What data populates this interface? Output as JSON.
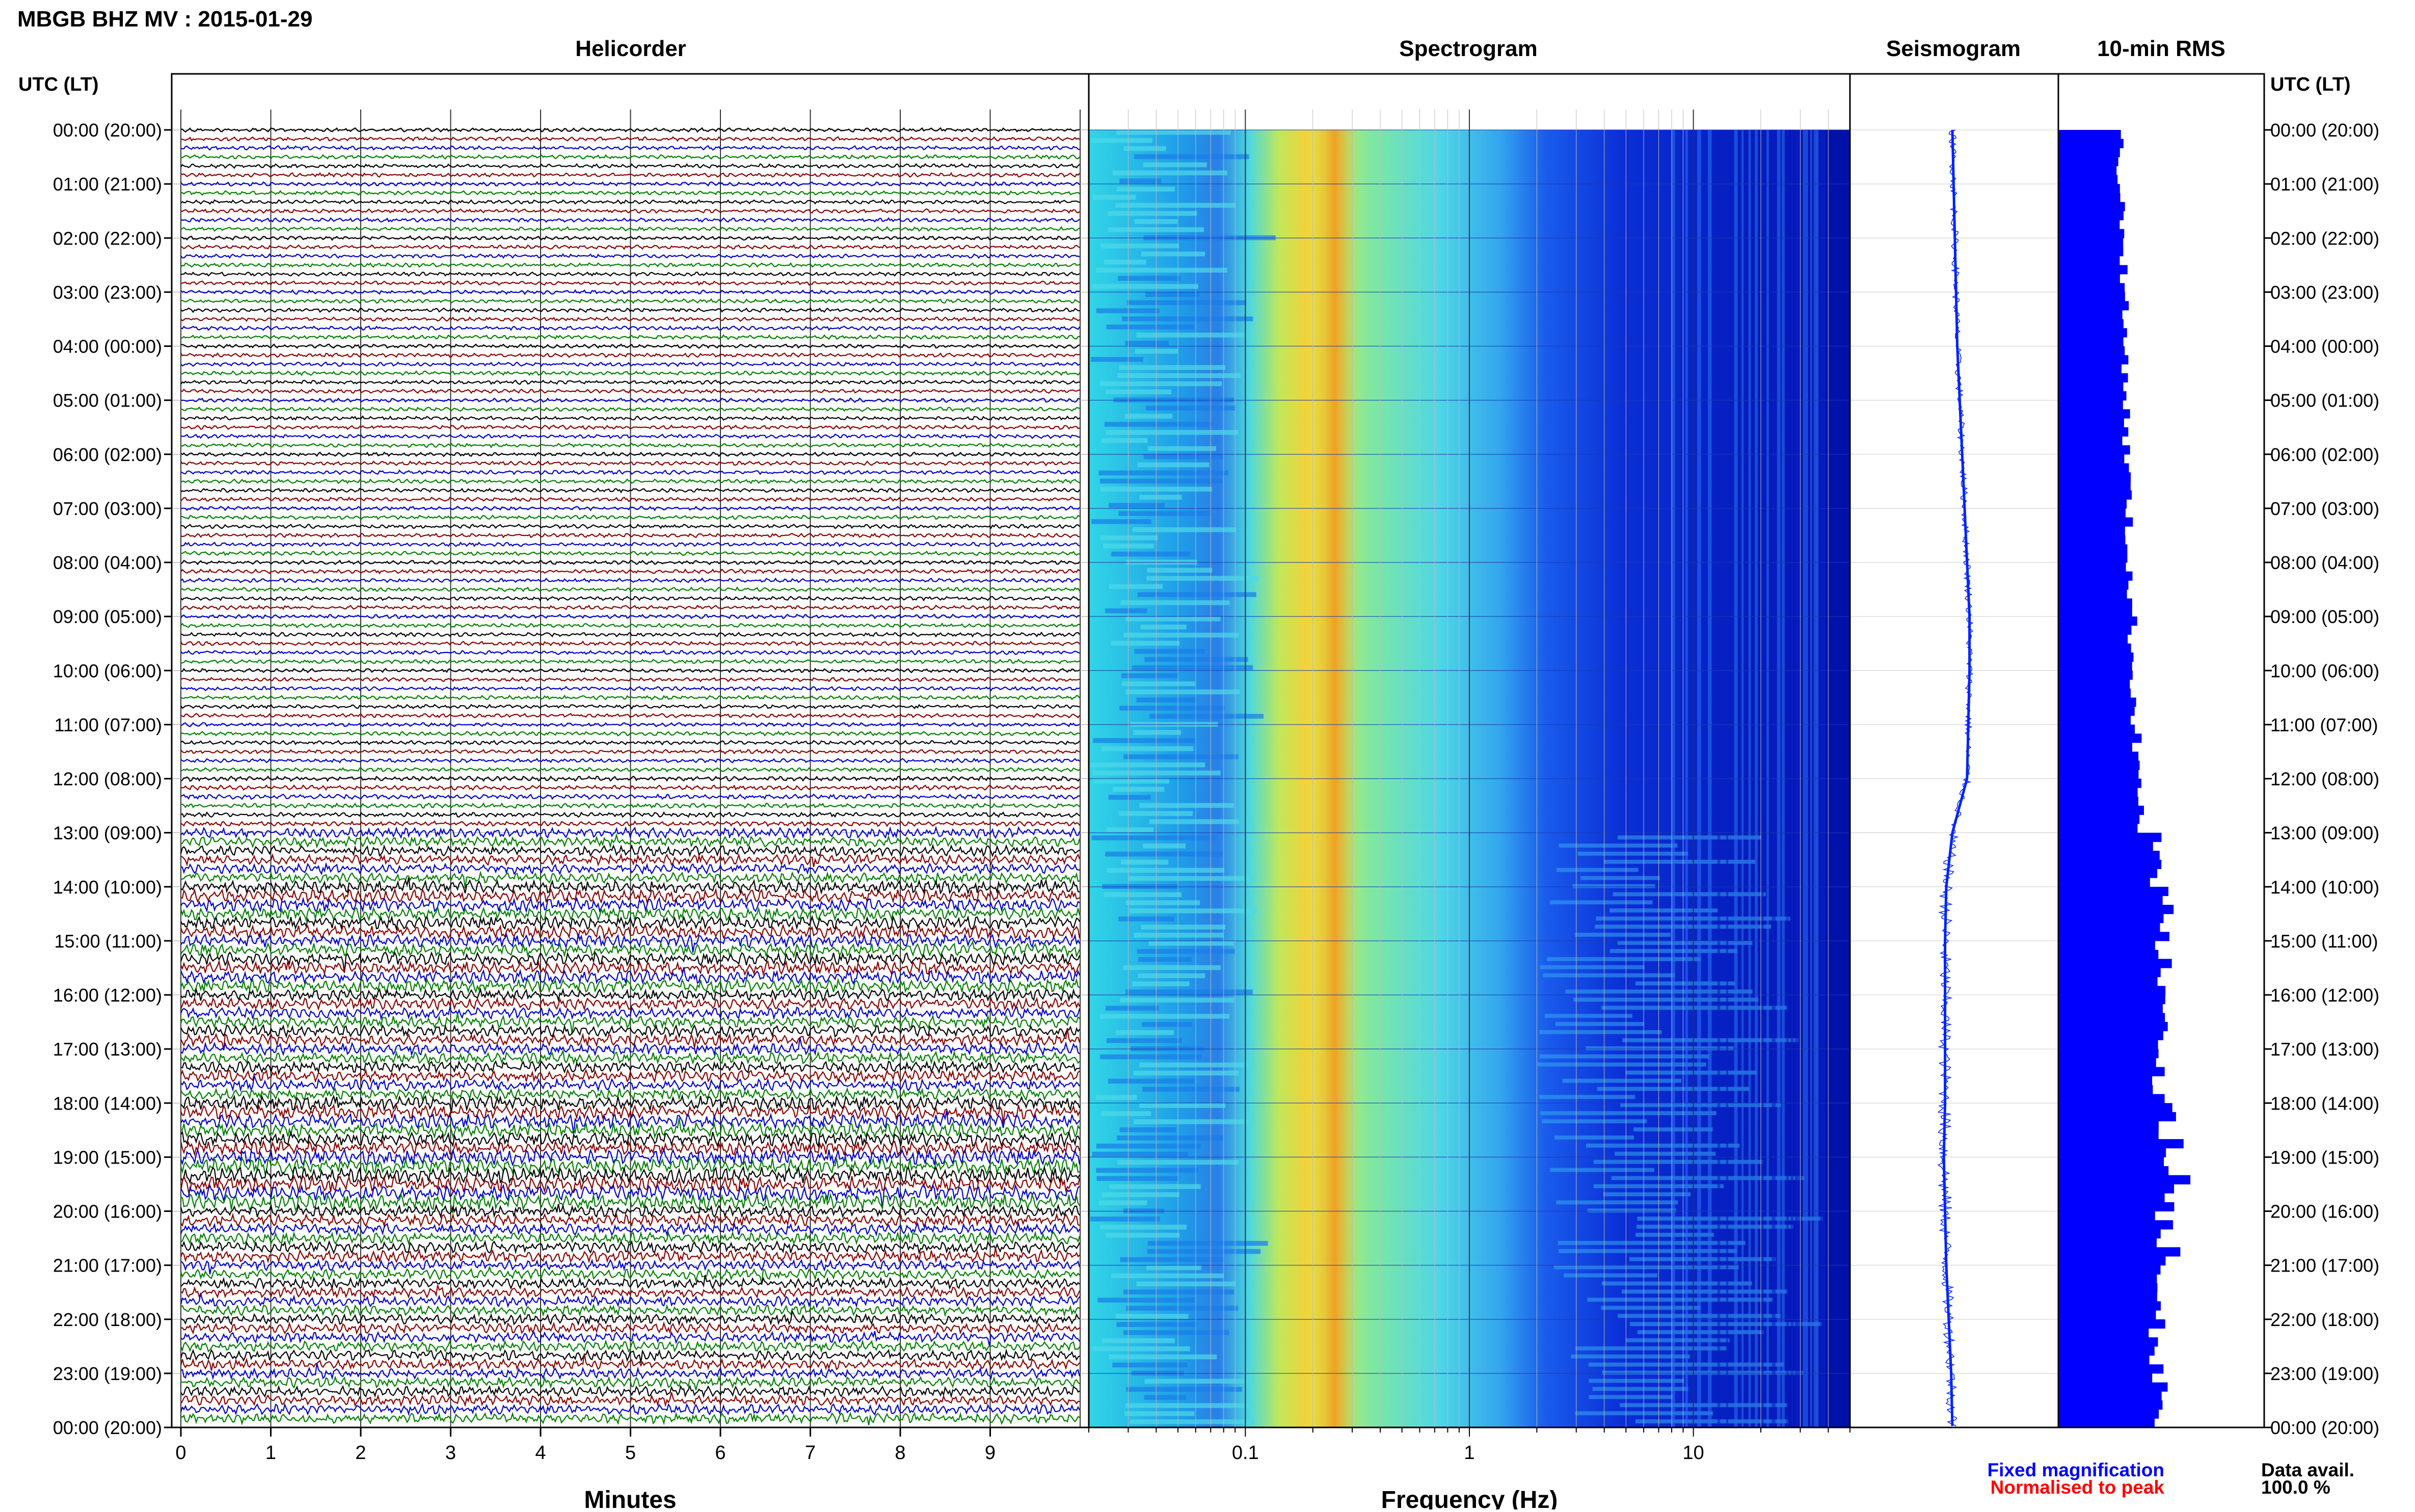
{
  "title": "MBGB BHZ MV : 2015-01-29",
  "panels": {
    "helicorder": "Helicorder",
    "spectrogram": "Spectrogram",
    "seismogram": "Seismogram",
    "rms": "10-min RMS"
  },
  "time_axis_header": "UTC (LT)",
  "hour_labels": [
    "00:00 (20:00)",
    "01:00 (21:00)",
    "02:00 (22:00)",
    "03:00 (23:00)",
    "04:00 (00:00)",
    "05:00 (01:00)",
    "06:00 (02:00)",
    "07:00 (03:00)",
    "08:00 (04:00)",
    "09:00 (05:00)",
    "10:00 (06:00)",
    "11:00 (07:00)",
    "12:00 (08:00)",
    "13:00 (09:00)",
    "14:00 (10:00)",
    "15:00 (11:00)",
    "16:00 (12:00)",
    "17:00 (13:00)",
    "18:00 (14:00)",
    "19:00 (15:00)",
    "20:00 (16:00)",
    "21:00 (17:00)",
    "22:00 (18:00)",
    "23:00 (19:00)",
    "00:00 (20:00)"
  ],
  "helicorder_axis": {
    "label": "Minutes",
    "ticks": [
      "0",
      "1",
      "2",
      "3",
      "4",
      "5",
      "6",
      "7",
      "8",
      "9"
    ]
  },
  "spectrogram_axis": {
    "label": "Frequency (Hz)",
    "ticks": [
      "0.1",
      "1",
      "10"
    ]
  },
  "legend": {
    "fixed": "Fixed magnification",
    "normalised": "Normalised to peak",
    "fixed_color": "#0000ff",
    "normalised_color": "#ff0000"
  },
  "availability": {
    "label": "Data avail.",
    "value": "100.0 %"
  },
  "colors": {
    "trace_cycle": [
      "#000000",
      "#8b0000",
      "#0000cc",
      "#008000"
    ],
    "seismogram": "#0022ff",
    "rms": "#0000ff"
  },
  "chart_data": [
    {
      "type": "line",
      "name": "helicorder",
      "x_unit": "minutes",
      "xlim": [
        0,
        10
      ],
      "y_unit": "hour of day (UTC)",
      "ylim": [
        0,
        24
      ],
      "lines_per_hour": 6,
      "relative_activity_by_hour": [
        1.0,
        1.0,
        1.0,
        1.0,
        1.0,
        1.0,
        1.0,
        1.0,
        1.0,
        1.0,
        1.0,
        1.0,
        1.1,
        1.6,
        1.8,
        1.8,
        1.7,
        1.7,
        1.9,
        2.0,
        1.7,
        1.6,
        1.6,
        1.6
      ]
    },
    {
      "type": "heatmap",
      "name": "spectrogram",
      "x_scale": "log",
      "x_unit": "Hz",
      "xlim": [
        0.02,
        50
      ],
      "y_unit": "hour of day (UTC)",
      "ylim": [
        0,
        24
      ],
      "peak_frequency_hz": 0.25
    },
    {
      "type": "line",
      "name": "seismogram",
      "y_unit": "hour of day (UTC)",
      "ylim": [
        0,
        24
      ],
      "relative_offset_by_hour": [
        0.0,
        0.02,
        0.04,
        0.06,
        0.08,
        0.12,
        0.16,
        0.2,
        0.24,
        0.28,
        0.28,
        0.26,
        0.24,
        0.0,
        -0.1,
        -0.12,
        -0.12,
        -0.12,
        -0.12,
        -0.14,
        -0.12,
        -0.1,
        -0.06,
        -0.02,
        0.0
      ]
    },
    {
      "type": "bar",
      "name": "10-min RMS",
      "y_unit": "hour of day (UTC)",
      "ylim": [
        0,
        24
      ],
      "bin_minutes": 10,
      "relative_rms_by_hour": [
        0.3,
        0.31,
        0.32,
        0.32,
        0.33,
        0.33,
        0.34,
        0.34,
        0.35,
        0.36,
        0.37,
        0.38,
        0.4,
        0.47,
        0.5,
        0.5,
        0.5,
        0.49,
        0.52,
        0.54,
        0.5,
        0.47,
        0.47,
        0.48
      ]
    }
  ]
}
